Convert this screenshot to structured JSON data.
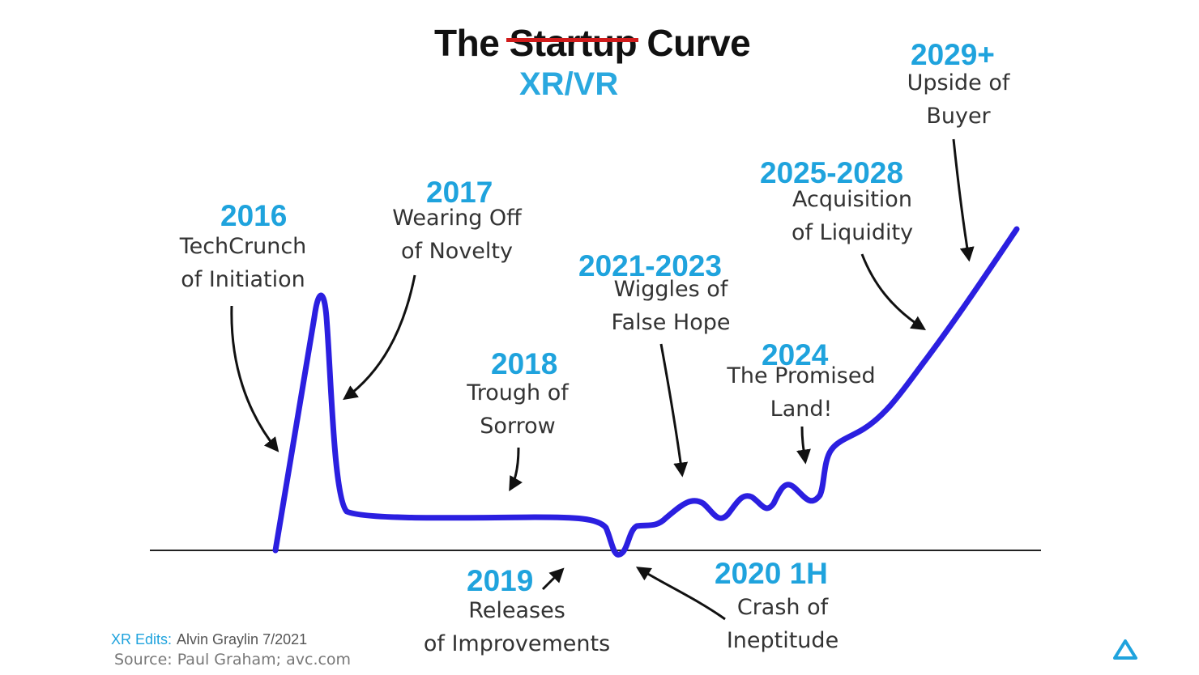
{
  "title": {
    "prefix": "The",
    "struck_word": "Startup",
    "suffix": "Curve",
    "replacement": "XR/VR"
  },
  "annotations": [
    {
      "id": "2016",
      "year": "2016",
      "caption": [
        "TechCrunch",
        "of Initiation"
      ]
    },
    {
      "id": "2017",
      "year": "2017",
      "caption": [
        "Wearing Off",
        "of Novelty"
      ]
    },
    {
      "id": "2018",
      "year": "2018",
      "caption": [
        "Trough of",
        "Sorrow"
      ]
    },
    {
      "id": "2019",
      "year": "2019",
      "caption": [
        "Releases",
        "of Improvements"
      ]
    },
    {
      "id": "2020",
      "year": "2020 1H",
      "caption": [
        "Crash of",
        "Ineptitude"
      ]
    },
    {
      "id": "2021",
      "year": "2021-2023",
      "caption": [
        "Wiggles of",
        "False Hope"
      ]
    },
    {
      "id": "2024",
      "year": "2024",
      "caption": [
        "The Promised",
        "Land!"
      ]
    },
    {
      "id": "2025",
      "year": "2025-2028",
      "caption": [
        "Acquisition",
        "of Liquidity"
      ]
    },
    {
      "id": "2029",
      "year": "2029+",
      "caption": [
        "Upside of",
        "Buyer"
      ]
    }
  ],
  "credits": {
    "edits_label": "XR Edits:",
    "edits_author": "Alvin Graylin 7/2021",
    "source": "Source: Paul Graham; avc.com"
  },
  "colors": {
    "curve": "#2b1fe0",
    "year_text": "#1fa3dd",
    "strike": "#d01c1c",
    "baseline": "#222222",
    "arrow": "#111111"
  },
  "icons": {
    "logo": "triangle-logo-icon"
  }
}
